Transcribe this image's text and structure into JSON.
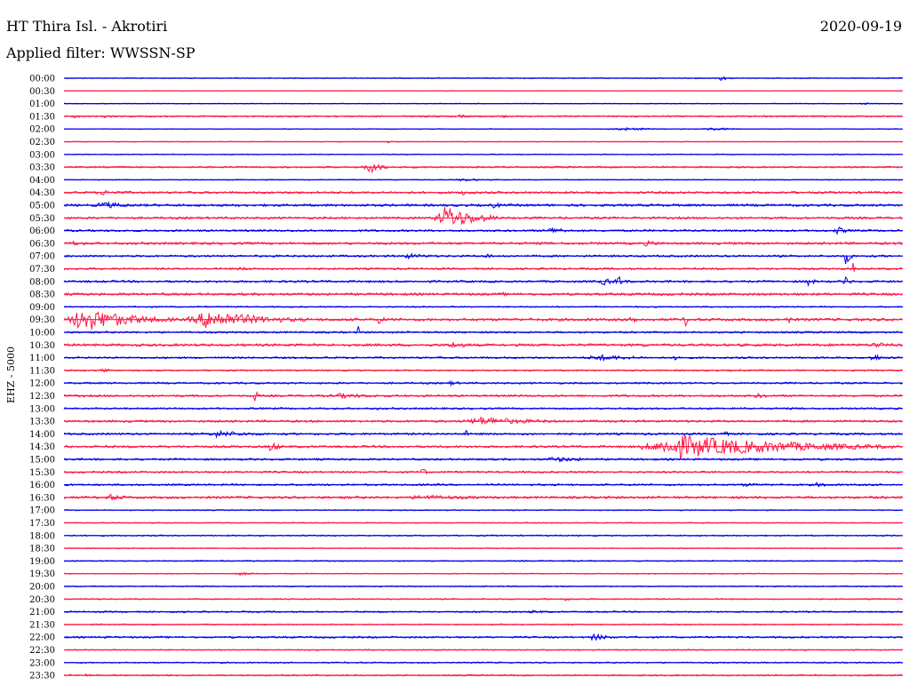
{
  "header": {
    "station": "HT Thira Isl. - Akrotiri",
    "date": "2020-09-19",
    "filter": "Applied filter: WWSSN-SP",
    "channel": "EHZ - 5000"
  },
  "chart_data": {
    "type": "line",
    "title": "HT Thira Isl. - Akrotiri",
    "subtitle": "Applied filter: WWSSN-SP",
    "ylabel": "EHZ - 5000",
    "xlabel": "",
    "trace_colors": [
      "#0000ee",
      "#ff1744"
    ],
    "grid": false,
    "x_range_minutes": [
      0,
      30
    ],
    "rows": [
      {
        "label": "00:00",
        "noise": 0.5,
        "events": [
          {
            "minute": 23.4,
            "amp": 3,
            "len": 0.6
          }
        ]
      },
      {
        "label": "00:30",
        "noise": 0.3,
        "events": []
      },
      {
        "label": "01:00",
        "noise": 0.4,
        "events": [
          {
            "minute": 28.5,
            "amp": 2,
            "len": 0.4
          }
        ]
      },
      {
        "label": "01:30",
        "noise": 0.8,
        "events": [
          {
            "minute": 0.3,
            "amp": 3,
            "len": 0.5
          },
          {
            "minute": 1.3,
            "amp": 2,
            "len": 1.0
          },
          {
            "minute": 13.9,
            "amp": 2,
            "len": 1.2
          },
          {
            "minute": 15.5,
            "amp": 2,
            "len": 0.8
          }
        ]
      },
      {
        "label": "02:00",
        "noise": 0.4,
        "events": [
          {
            "minute": 19.5,
            "amp": 2,
            "len": 2.5
          },
          {
            "minute": 22.8,
            "amp": 2,
            "len": 2.0
          }
        ]
      },
      {
        "label": "02:30",
        "noise": 0.3,
        "events": [
          {
            "minute": 11.5,
            "amp": 2,
            "len": 0.3
          }
        ]
      },
      {
        "label": "03:00",
        "noise": 0.5,
        "events": []
      },
      {
        "label": "03:30",
        "noise": 0.9,
        "events": [
          {
            "minute": 10.8,
            "amp": 9,
            "len": 0.8
          },
          {
            "minute": 7.4,
            "amp": 2,
            "len": 0.5
          }
        ]
      },
      {
        "label": "04:00",
        "noise": 0.5,
        "events": [
          {
            "minute": 14.0,
            "amp": 2,
            "len": 1.5
          }
        ]
      },
      {
        "label": "04:30",
        "noise": 1.2,
        "events": [
          {
            "minute": 1.0,
            "amp": 3,
            "len": 2.5
          },
          {
            "minute": 14.0,
            "amp": 3,
            "len": 1.5
          }
        ]
      },
      {
        "label": "05:00",
        "noise": 1.3,
        "events": [
          {
            "minute": 1.0,
            "amp": 4,
            "len": 2.5
          },
          {
            "minute": 15.2,
            "amp": 4,
            "len": 0.8
          }
        ]
      },
      {
        "label": "05:30",
        "noise": 1.2,
        "events": [
          {
            "minute": 13.3,
            "amp": 14,
            "len": 2.3
          }
        ]
      },
      {
        "label": "06:00",
        "noise": 1.1,
        "events": [
          {
            "minute": 17.2,
            "amp": 4,
            "len": 1.5
          },
          {
            "minute": 27.5,
            "amp": 5,
            "len": 0.8
          }
        ]
      },
      {
        "label": "06:30",
        "noise": 1.3,
        "events": [
          {
            "minute": 0.2,
            "amp": 3,
            "len": 1.0
          },
          {
            "minute": 20.5,
            "amp": 3,
            "len": 2.0
          }
        ]
      },
      {
        "label": "07:00",
        "noise": 1.1,
        "events": [
          {
            "minute": 12.0,
            "amp": 3,
            "len": 2.0
          },
          {
            "minute": 15.0,
            "amp": 4,
            "len": 0.5
          },
          {
            "minute": 27.9,
            "amp": 10,
            "len": 0.4
          }
        ]
      },
      {
        "label": "07:30",
        "noise": 1.0,
        "events": [
          {
            "minute": 6.0,
            "amp": 2,
            "len": 2.0
          },
          {
            "minute": 28.2,
            "amp": 9,
            "len": 0.1
          }
        ]
      },
      {
        "label": "08:00",
        "noise": 1.2,
        "events": [
          {
            "minute": 19.0,
            "amp": 4,
            "len": 2.0
          },
          {
            "minute": 19.8,
            "amp": 9,
            "len": 0.3
          },
          {
            "minute": 26.5,
            "amp": 5,
            "len": 0.6
          },
          {
            "minute": 27.9,
            "amp": 8,
            "len": 0.3
          }
        ]
      },
      {
        "label": "08:30",
        "noise": 1.3,
        "events": [
          {
            "minute": 15.6,
            "amp": 4,
            "len": 0.3
          }
        ]
      },
      {
        "label": "09:00",
        "noise": 0.7,
        "events": []
      },
      {
        "label": "09:30",
        "noise": 1.5,
        "events": [
          {
            "minute": 0.1,
            "amp": 14,
            "len": 3.8
          },
          {
            "minute": 4.5,
            "amp": 11,
            "len": 4.2
          },
          {
            "minute": 11.2,
            "amp": 6,
            "len": 0.4
          },
          {
            "minute": 16.8,
            "amp": 8,
            "len": 0.1
          },
          {
            "minute": 20.3,
            "amp": 8,
            "len": 0.3
          },
          {
            "minute": 22.2,
            "amp": 8,
            "len": 0.2
          },
          {
            "minute": 25.8,
            "amp": 5,
            "len": 0.5
          }
        ]
      },
      {
        "label": "10:00",
        "noise": 1.0,
        "events": [
          {
            "minute": 10.5,
            "amp": 9,
            "len": 0.1
          }
        ]
      },
      {
        "label": "10:30",
        "noise": 1.4,
        "events": [
          {
            "minute": 13.6,
            "amp": 4,
            "len": 1.8
          },
          {
            "minute": 20.7,
            "amp": 8,
            "len": 0.1
          },
          {
            "minute": 28.8,
            "amp": 4,
            "len": 1.2
          }
        ]
      },
      {
        "label": "11:00",
        "noise": 1.0,
        "events": [
          {
            "minute": 18.6,
            "amp": 4,
            "len": 3.0
          },
          {
            "minute": 21.8,
            "amp": 4,
            "len": 0.5
          },
          {
            "minute": 28.8,
            "amp": 5,
            "len": 0.8
          }
        ]
      },
      {
        "label": "11:30",
        "noise": 0.8,
        "events": [
          {
            "minute": 1.3,
            "amp": 4,
            "len": 0.5
          }
        ]
      },
      {
        "label": "12:00",
        "noise": 1.0,
        "events": [
          {
            "minute": 13.7,
            "amp": 3,
            "len": 0.8
          }
        ]
      },
      {
        "label": "12:30",
        "noise": 1.1,
        "events": [
          {
            "minute": 6.8,
            "amp": 9,
            "len": 0.2
          },
          {
            "minute": 9.3,
            "amp": 3,
            "len": 3.5
          },
          {
            "minute": 24.5,
            "amp": 3,
            "len": 1.5
          }
        ]
      },
      {
        "label": "13:00",
        "noise": 1.0,
        "events": [
          {
            "minute": 11.0,
            "amp": 2,
            "len": 0.8
          }
        ]
      },
      {
        "label": "13:30",
        "noise": 1.2,
        "events": [
          {
            "minute": 14.2,
            "amp": 5,
            "len": 4.5
          }
        ]
      },
      {
        "label": "14:00",
        "noise": 1.1,
        "events": [
          {
            "minute": 5.0,
            "amp": 4,
            "len": 3.0
          },
          {
            "minute": 14.3,
            "amp": 7,
            "len": 0.2
          },
          {
            "minute": 23.4,
            "amp": 4,
            "len": 0.7
          }
        ]
      },
      {
        "label": "14:30",
        "noise": 1.2,
        "events": [
          {
            "minute": 7.3,
            "amp": 7,
            "len": 0.6
          },
          {
            "minute": 20.7,
            "amp": 13,
            "len": 9.0
          }
        ]
      },
      {
        "label": "15:00",
        "noise": 1.1,
        "events": [
          {
            "minute": 17.0,
            "amp": 3,
            "len": 3.5
          }
        ]
      },
      {
        "label": "15:30",
        "noise": 1.0,
        "events": [
          {
            "minute": 12.8,
            "amp": 9,
            "len": 0.2
          }
        ]
      },
      {
        "label": "16:00",
        "noise": 1.0,
        "events": [
          {
            "minute": 26.8,
            "amp": 3,
            "len": 1.0
          },
          {
            "minute": 24.0,
            "amp": 2,
            "len": 2.5
          }
        ]
      },
      {
        "label": "16:30",
        "noise": 1.3,
        "events": [
          {
            "minute": 1.4,
            "amp": 4,
            "len": 1.5
          },
          {
            "minute": 12.0,
            "amp": 3,
            "len": 5.5
          }
        ]
      },
      {
        "label": "17:00",
        "noise": 0.6,
        "events": []
      },
      {
        "label": "17:30",
        "noise": 0.5,
        "events": []
      },
      {
        "label": "18:00",
        "noise": 0.7,
        "events": []
      },
      {
        "label": "18:30",
        "noise": 0.5,
        "events": []
      },
      {
        "label": "19:00",
        "noise": 0.6,
        "events": []
      },
      {
        "label": "19:30",
        "noise": 0.5,
        "events": [
          {
            "minute": 6.0,
            "amp": 2,
            "len": 1.5
          }
        ]
      },
      {
        "label": "20:00",
        "noise": 0.6,
        "events": []
      },
      {
        "label": "20:30",
        "noise": 0.7,
        "events": [
          {
            "minute": 17.7,
            "amp": 2,
            "len": 1.0
          }
        ]
      },
      {
        "label": "21:00",
        "noise": 0.8,
        "events": [
          {
            "minute": 16.5,
            "amp": 2,
            "len": 1.5
          }
        ]
      },
      {
        "label": "21:30",
        "noise": 0.6,
        "events": []
      },
      {
        "label": "22:00",
        "noise": 1.0,
        "events": [
          {
            "minute": 18.7,
            "amp": 4,
            "len": 1.5
          },
          {
            "minute": 1.2,
            "amp": 2,
            "len": 1.0
          }
        ]
      },
      {
        "label": "22:30",
        "noise": 0.6,
        "events": []
      },
      {
        "label": "23:00",
        "noise": 0.7,
        "events": []
      },
      {
        "label": "23:30",
        "noise": 0.8,
        "events": [
          {
            "minute": 0.5,
            "amp": 2,
            "len": 1.0
          }
        ]
      }
    ]
  }
}
